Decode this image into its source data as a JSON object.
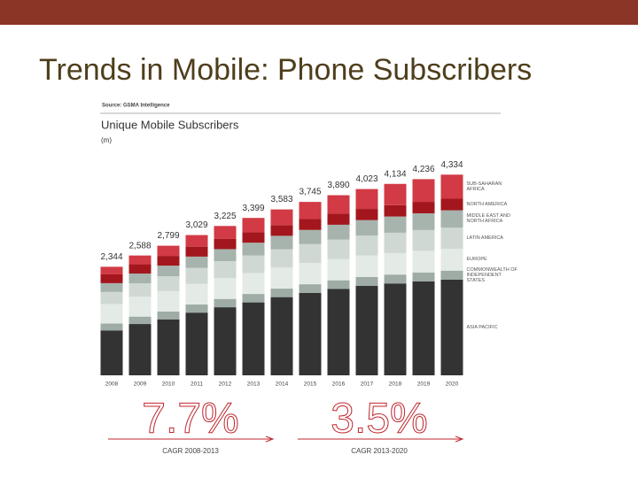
{
  "slide_title": "Trends in Mobile: Phone Subscribers",
  "chart_data": {
    "type": "stacked_bar",
    "source": "Source: GSMA Intelligence",
    "title": "Unique Mobile Subscribers",
    "unit_label": "(m)",
    "categories": [
      "2008",
      "2009",
      "2010",
      "2011",
      "2012",
      "2013",
      "2014",
      "2015",
      "2016",
      "2017",
      "2018",
      "2019",
      "2020"
    ],
    "series": [
      {
        "name": "Asia Pacific",
        "color": "#333333",
        "values": [
          970,
          1108,
          1209,
          1354,
          1470,
          1575,
          1689,
          1781,
          1864,
          1935,
          1984,
          2027,
          2065
        ]
      },
      {
        "name": "Commonwealth of Independent States",
        "color": "#9eaca5",
        "values": [
          150,
          160,
          170,
          175,
          180,
          182,
          184,
          186,
          188,
          190,
          192,
          194,
          196
        ]
      },
      {
        "name": "Europe",
        "color": "#e4eae6",
        "values": [
          420,
          430,
          440,
          445,
          450,
          452,
          455,
          458,
          460,
          462,
          464,
          466,
          468
        ]
      },
      {
        "name": "Latin America",
        "color": "#cfd8d2",
        "values": [
          260,
          290,
          320,
          345,
          365,
          380,
          395,
          410,
          420,
          430,
          440,
          450,
          460
        ]
      },
      {
        "name": "Middle East and North Africa",
        "color": "#a7b3ad",
        "values": [
          190,
          210,
          230,
          245,
          260,
          275,
          290,
          305,
          320,
          335,
          350,
          362,
          375
        ]
      },
      {
        "name": "North America",
        "color": "#a3161d",
        "values": [
          190,
          200,
          210,
          215,
          220,
          225,
          230,
          235,
          238,
          241,
          244,
          247,
          250
        ]
      },
      {
        "name": "Sub-Saharan Africa",
        "color": "#d23a45",
        "values": [
          164,
          190,
          220,
          250,
          280,
          310,
          340,
          370,
          400,
          430,
          460,
          490,
          520
        ]
      }
    ],
    "totals": [
      2344,
      2588,
      2799,
      3029,
      3225,
      3399,
      3583,
      3745,
      3890,
      4023,
      4134,
      4236,
      4334
    ],
    "total_labels": [
      "2,344",
      "2,588",
      "2,799",
      "3,029",
      "3,225",
      "3,399",
      "3,583",
      "3,745",
      "3,890",
      "4,023",
      "4,134",
      "4,236",
      "4,334"
    ],
    "annotations": [
      {
        "value": "7.7%",
        "label": "CAGR 2008-2013"
      },
      {
        "value": "3.5%",
        "label": "CAGR 2013-2020"
      }
    ]
  }
}
